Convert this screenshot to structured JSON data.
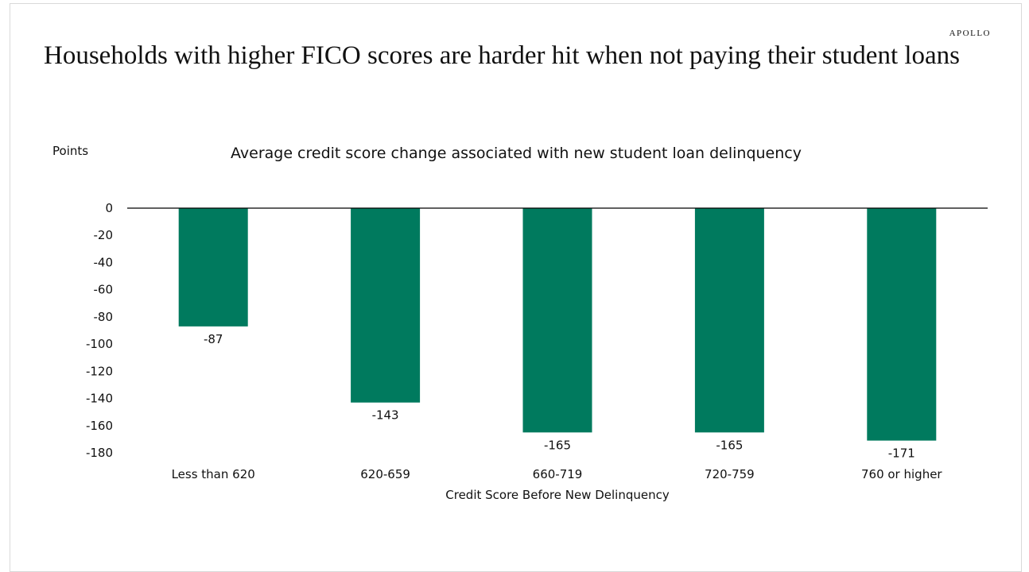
{
  "brand": "APOLLO",
  "headline": "Households with higher FICO scores are harder hit when not paying their student loans",
  "chart_data": {
    "type": "bar",
    "title": "Average credit score change associated with new student loan delinquency",
    "ylabel": "Points",
    "xlabel": "Credit Score Before New Delinquency",
    "categories": [
      "Less than 620",
      "620-659",
      "660-719",
      "720-759",
      "760 or higher"
    ],
    "values": [
      -87,
      -143,
      -165,
      -165,
      -171
    ],
    "data_labels": [
      "-87",
      "-143",
      "-165",
      "-165",
      "-171"
    ],
    "ylim": [
      -180,
      0
    ],
    "yticks": [
      0,
      -20,
      -40,
      -60,
      -80,
      -100,
      -120,
      -140,
      -160,
      -180
    ],
    "grid": false,
    "legend": "none",
    "bar_color": "#007A5E"
  }
}
